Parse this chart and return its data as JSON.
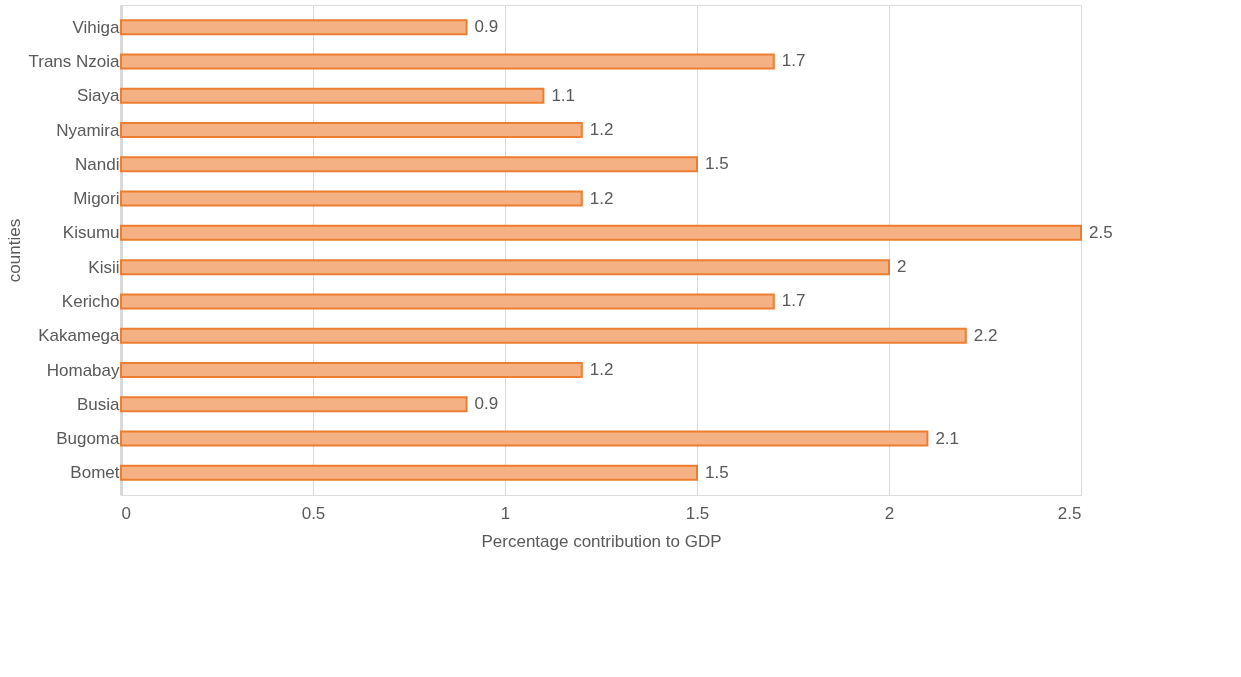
{
  "chart_data": {
    "type": "bar",
    "orientation": "horizontal",
    "xlabel": "Percentage contribution to GDP",
    "ylabel": "counties",
    "categories": [
      "Vihiga",
      "Trans Nzoia",
      "Siaya",
      "Nyamira",
      "Nandi",
      "Migori",
      "Kisumu",
      "Kisii",
      "Kericho",
      "Kakamega",
      "Homabay",
      "Busia",
      "Bugoma",
      "Bomet"
    ],
    "values": [
      0.9,
      1.7,
      1.1,
      1.2,
      1.5,
      1.2,
      2.5,
      2,
      1.7,
      2.2,
      1.2,
      0.9,
      2.1,
      1.5
    ],
    "color": "#f4b183",
    "xlim": [
      0,
      2.5
    ],
    "xticks": [
      0,
      0.5,
      1,
      1.5,
      2,
      2.5
    ],
    "grid": "x",
    "data_labels": true
  }
}
